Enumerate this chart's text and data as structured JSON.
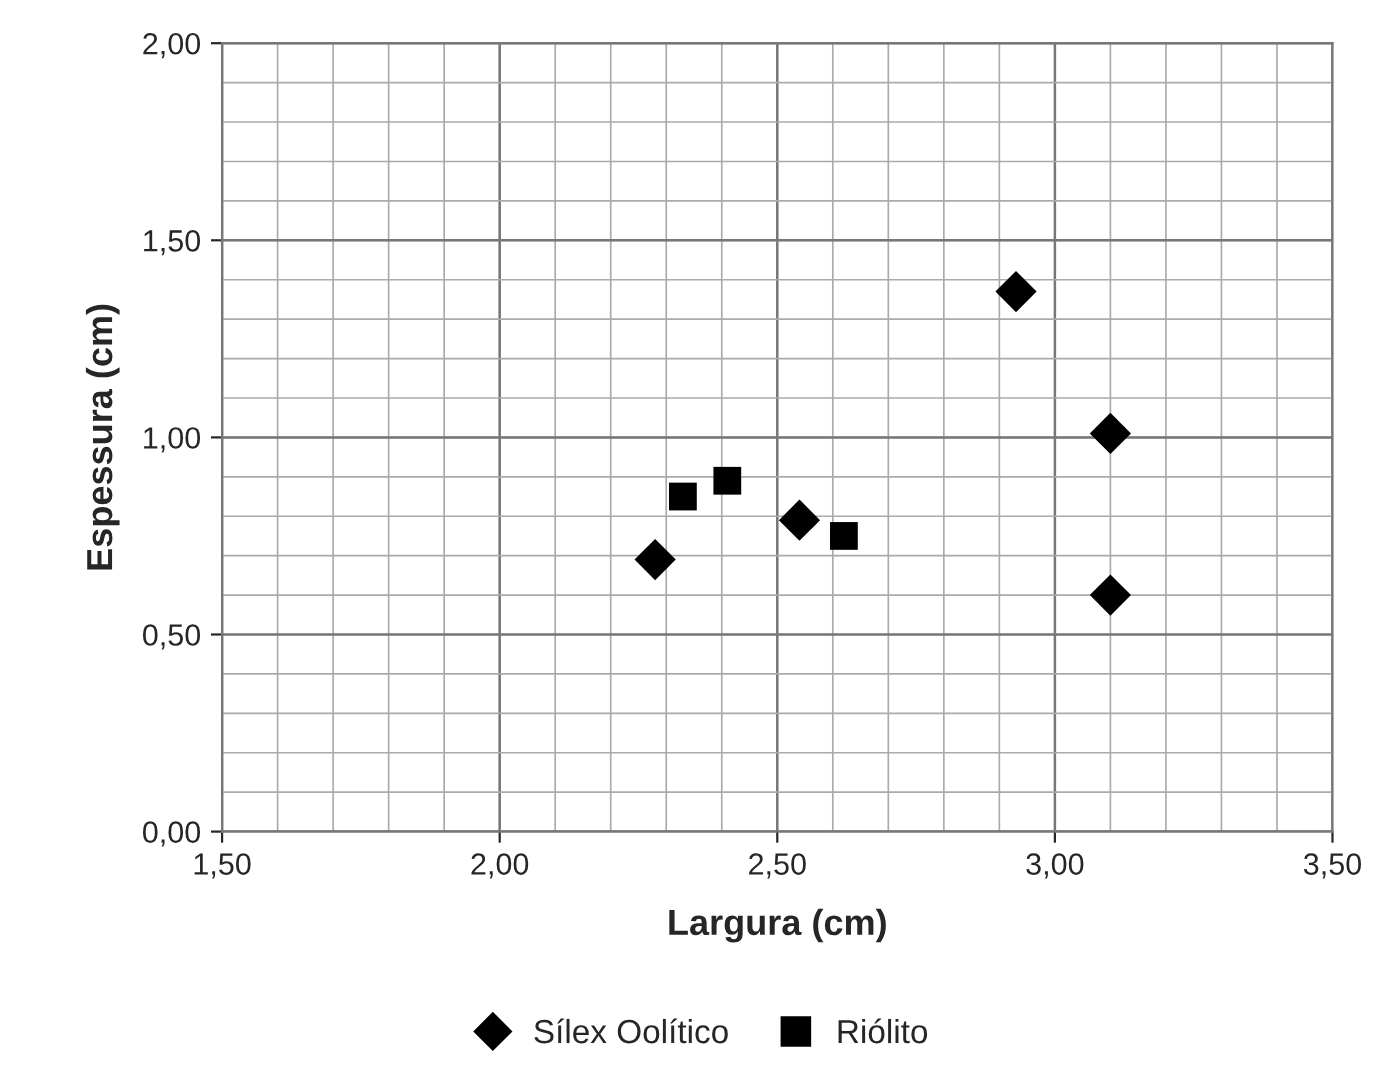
{
  "chart_data": {
    "type": "scatter",
    "xlabel": "Largura (cm)",
    "ylabel": "Espessura (cm)",
    "xlim": [
      1.5,
      3.5
    ],
    "ylim": [
      0,
      2
    ],
    "xticks": [
      {
        "value": 1.5,
        "label": "1,50"
      },
      {
        "value": 2.0,
        "label": "2,00"
      },
      {
        "value": 2.5,
        "label": "2,50"
      },
      {
        "value": 3.0,
        "label": "3,00"
      },
      {
        "value": 3.5,
        "label": "3,50"
      }
    ],
    "yticks": [
      {
        "value": 0,
        "label": "0,00"
      },
      {
        "value": 0.5,
        "label": "0,50"
      },
      {
        "value": 1.0,
        "label": "1,00"
      },
      {
        "value": 1.5,
        "label": "1,50"
      },
      {
        "value": 2.0,
        "label": "2,00"
      }
    ],
    "grid": true,
    "legend": "bottom",
    "series": [
      {
        "name": "Sílex Oolítico",
        "color": "#000000",
        "marker": "diamond",
        "x": [
          2.28,
          2.54,
          2.93,
          3.1,
          3.1
        ],
        "values": [
          0.69,
          0.79,
          1.37,
          1.01,
          0.6
        ]
      },
      {
        "name": "Riólito",
        "color": "#000000",
        "marker": "square",
        "x": [
          2.33,
          2.41,
          2.62
        ],
        "values": [
          0.85,
          0.89,
          0.75
        ]
      }
    ]
  }
}
